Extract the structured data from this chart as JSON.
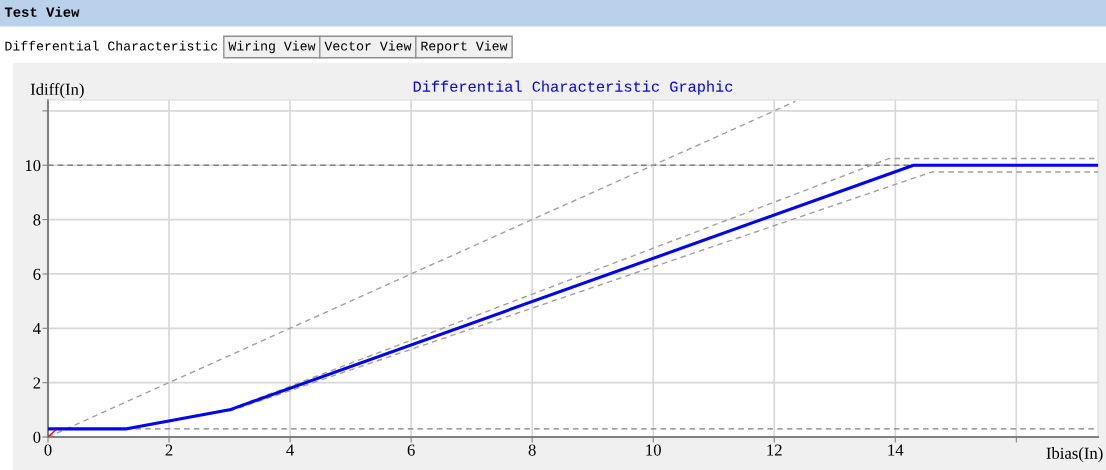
{
  "chart_data": {
    "type": "line",
    "title": "Differential Characteristic Graphic",
    "xlabel": "Ibias(In)",
    "ylabel": "Idiff(In)",
    "annotations": [
      "Test View",
      "Differential Characteristic",
      "Wiring View",
      "Vector View",
      "Report View"
    ],
    "series": [
      {
        "color": "#a0a0a0",
        "line_style": "dashed",
        "x": [
          0,
          12.35
        ],
        "values": [
          0,
          12.35
        ]
      },
      {
        "color": "#a0a0a0",
        "line_style": "dashed",
        "x": [
          0,
          1.3,
          3,
          13.9,
          17.35
        ],
        "values": [
          0.3,
          0.3,
          1.02,
          10.25,
          10.25
        ]
      },
      {
        "color": "#a0a0a0",
        "line_style": "dashed",
        "x": [
          3,
          14.6,
          17.35
        ],
        "values": [
          0.95,
          9.75,
          9.75
        ]
      },
      {
        "color": "#0000ff",
        "line_style": "solid",
        "x": [
          0,
          1.3,
          3,
          14.3,
          17.35
        ],
        "values": [
          0.3,
          0.3,
          1.0,
          10.0,
          10.0
        ]
      },
      {
        "color": "#ff0000",
        "line_style": "solid",
        "x": [
          0,
          0.12
        ],
        "values": [
          0,
          0.25
        ]
      }
    ],
    "ref_lines": [
      {
        "axis": "y",
        "value": 10,
        "color": "#808080",
        "line_style": "dashed"
      },
      {
        "axis": "y",
        "value": 0.3,
        "color": "#808080",
        "line_style": "dashed"
      }
    ],
    "xlim": [
      0,
      17.35
    ],
    "ylim": [
      0,
      12.4
    ],
    "xticks": [
      0,
      2,
      4,
      6,
      8,
      10,
      12,
      14,
      {
        "value": 16,
        "label": null
      }
    ],
    "yticks": [
      0,
      2,
      4,
      6,
      8,
      10,
      {
        "value": 12,
        "label": null
      }
    ],
    "grid": true
  }
}
